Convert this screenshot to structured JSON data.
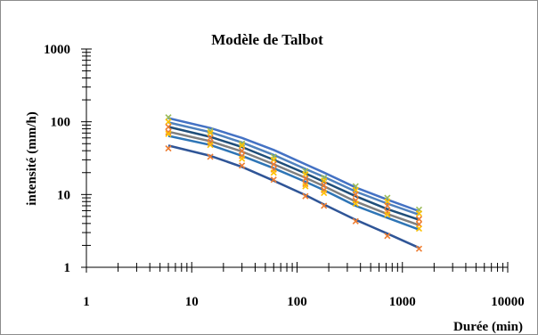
{
  "chart_data": {
    "type": "scatter",
    "title": "Modèle de Talbot",
    "xlabel": "Durée (min)",
    "ylabel": "intensité (mm/h)",
    "x_scale": "log",
    "y_scale": "log",
    "xlim": [
      1,
      10000
    ],
    "ylim": [
      1,
      1000
    ],
    "x_ticks": [
      "1",
      "10",
      "100",
      "1000",
      "10000"
    ],
    "y_ticks": [
      "1",
      "10",
      "100",
      "1000"
    ],
    "grid": false,
    "legend": "none",
    "x": [
      6,
      15,
      30,
      60,
      120,
      180,
      360,
      720,
      1440
    ],
    "series": [
      {
        "color": "#4472c4",
        "observed": [
          115,
          75,
          50,
          33,
          21,
          17,
          13,
          9,
          6.2
        ],
        "fitted": [
          112,
          82,
          60,
          41,
          26,
          20,
          12.5,
          8.5,
          5.9
        ]
      },
      {
        "color": "#4f81bd",
        "observed": [
          100,
          70,
          47,
          30,
          19,
          15.5,
          11.5,
          8,
          5.5
        ],
        "fitted": [
          98,
          72,
          52,
          35,
          22.5,
          17.5,
          11,
          7.5,
          5.3
        ]
      },
      {
        "color": "#1f4e79",
        "observed": [
          85,
          60,
          40,
          26,
          16.5,
          13.5,
          10,
          7,
          4.6
        ],
        "fitted": [
          85,
          62,
          45,
          30,
          19.5,
          15,
          9.5,
          6.3,
          4.5
        ]
      },
      {
        "color": "#7f7f7f",
        "observed": [
          72,
          52,
          34,
          22,
          14,
          11.5,
          8.3,
          5.8,
          3.9
        ],
        "fitted": [
          73,
          54,
          39,
          26,
          17,
          13,
          8,
          5.4,
          3.8
        ]
      },
      {
        "color": "#2e75b6",
        "observed": [
          68,
          48,
          31,
          20,
          13,
          10.5,
          7.5,
          5.3,
          3.4
        ],
        "fitted": [
          64,
          48,
          34,
          23,
          15,
          11.5,
          7,
          4.8,
          3.3
        ]
      },
      {
        "color": "#2f5597",
        "observed": [
          43,
          33,
          25,
          16,
          9.5,
          7,
          4.3,
          2.7,
          1.8
        ],
        "fitted": [
          47,
          34,
          24,
          15.5,
          9.8,
          7.3,
          4.5,
          2.9,
          1.85
        ]
      }
    ]
  },
  "colors": {
    "marker_orange": "#ed7d31",
    "marker_green": "#9bbb59",
    "marker_yellow": "#ffc000"
  }
}
